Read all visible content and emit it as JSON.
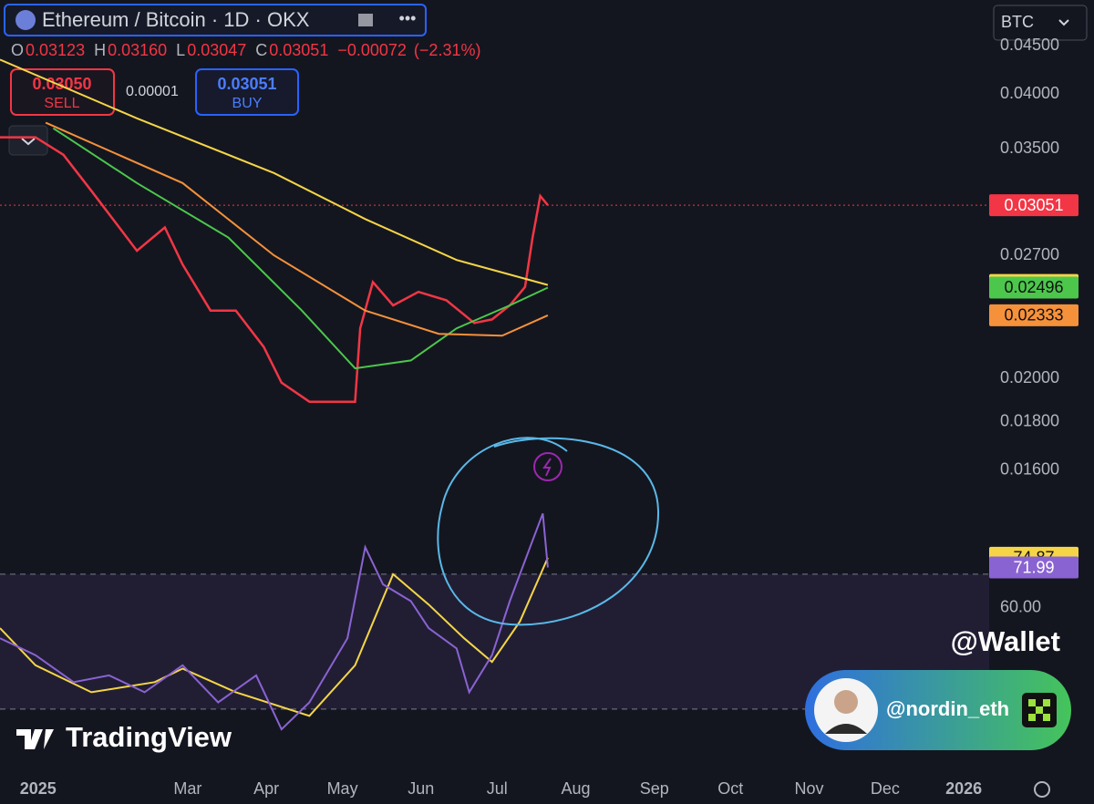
{
  "toolbar": {
    "currency": "BTC",
    "ohlc": [
      {
        "key": "O",
        "value": 0.03123
      },
      {
        "key": "H",
        "value": {
          "value": 0.0316,
          "label": "0.03160"
        }
      },
      {
        "key": "L",
        "value": 0.03047
      },
      {
        "key": "C",
        "value": 0.03051
      }
    ],
    "change": {
      "value": -0.00072,
      "label": "−0.00072"
    },
    "change_pct": {
      "value": -2.31,
      "label": "(−2.31%)"
    },
    "sell": {
      "price": {
        "value": 0.0305,
        "label": "0.03050"
      },
      "label": "SELL"
    },
    "spread": 1e-05,
    "buy": {
      "price": 0.03051,
      "label": "BUY"
    }
  },
  "overlay": {
    "watermark": "TradingView",
    "badge": "@Wallet",
    "handle": "@nordin_eth"
  },
  "chart_data": [
    {
      "type": "line",
      "title": "Ethereum / Bitcoin · 1D · OKX",
      "log_scale": true,
      "xlim": [
        -15,
        375
      ],
      "ylim": [
        0.0155,
        0.0503
      ],
      "yticks": [
        {
          "value": 0.045,
          "label": "0.04500"
        },
        {
          "value": 0.04,
          "label": "0.04000"
        },
        {
          "value": 0.035,
          "label": "0.03500"
        },
        {
          "value": 0.027,
          "label": "0.02700"
        },
        {
          "value": 0.02,
          "label": "0.02000"
        },
        {
          "value": 0.018,
          "label": "0.01800"
        },
        {
          "value": 0.016,
          "label": "0.01600"
        }
      ],
      "series": [
        {
          "color": "#f23645",
          "x": [
            -15,
            -1,
            10,
            21,
            32,
            39,
            50,
            57,
            68,
            78,
            89,
            96,
            107,
            118,
            125,
            127,
            132,
            140,
            150,
            161,
            172,
            179,
            186,
            192,
            195,
            198,
            201
          ],
          "values": [
            0.036,
            0.036,
            0.0345,
            0.0316,
            0.0289,
            0.0273,
            0.0289,
            0.0264,
            0.0236,
            0.0236,
            0.0216,
            0.0198,
            0.0189,
            0.0189,
            0.0189,
            0.0226,
            0.0253,
            0.0239,
            0.0247,
            0.0242,
            0.0229,
            0.0231,
            0.0239,
            0.025,
            0.0282,
            0.0312,
            0.03051
          ]
        },
        {
          "color": "#f5d547",
          "x": [
            -15,
            39,
            93,
            129,
            165,
            201
          ],
          "values": [
            0.0435,
            0.0377,
            0.033,
            0.0295,
            0.0267,
            0.02512
          ]
        },
        {
          "color": "#4cc74c",
          "x": [
            6,
            39,
            75,
            104,
            125,
            147,
            165,
            186,
            201
          ],
          "values": [
            0.0368,
            0.0322,
            0.0282,
            0.0236,
            0.0205,
            0.0209,
            0.0226,
            0.0239,
            0.02496
          ]
        },
        {
          "color": "#f5913b",
          "x": [
            3,
            57,
            93,
            129,
            158,
            183,
            201
          ],
          "values": [
            0.0373,
            0.0322,
            0.027,
            0.0236,
            0.0223,
            0.0222,
            0.02333
          ]
        }
      ]
    },
    {
      "type": "line",
      "xlim": [
        -15,
        375
      ],
      "ylim": [
        10.5,
        94.3
      ],
      "levels": [
        70,
        30
      ],
      "yticks": [
        {
          "value": 60,
          "label": "60.00"
        }
      ],
      "xticks": [
        {
          "value": 0,
          "label": "2025"
        },
        {
          "value": 59,
          "label": "Mar"
        },
        {
          "value": 90,
          "label": "Apr"
        },
        {
          "value": 120,
          "label": "May"
        },
        {
          "value": 151,
          "label": "Jun"
        },
        {
          "value": 181,
          "label": "Jul"
        },
        {
          "value": 212,
          "label": "Aug"
        },
        {
          "value": 243,
          "label": "Sep"
        },
        {
          "value": 273,
          "label": "Oct"
        },
        {
          "value": 304,
          "label": "Nov"
        },
        {
          "value": 334,
          "label": "Dec"
        },
        {
          "value": 365,
          "label": "2026"
        }
      ],
      "series": [
        {
          "color": "#f5d547",
          "x": [
            -15,
            -1,
            21,
            46,
            57,
            78,
            107,
            125,
            140,
            154,
            168,
            179,
            190,
            201
          ],
          "values": [
            54,
            43,
            35,
            38,
            42,
            35,
            28,
            43,
            70,
            61,
            51,
            44,
            56,
            74.87
          ]
        },
        {
          "color": "#8a63d2",
          "x": [
            -15,
            -1,
            14,
            28,
            42,
            57,
            71,
            86,
            96,
            107,
            122,
            129,
            136,
            147,
            154,
            165,
            170,
            179,
            186,
            194,
            199,
            201
          ],
          "values": [
            51,
            46,
            38,
            40,
            35,
            43,
            32,
            40,
            24,
            32,
            51,
            78,
            67,
            62,
            54,
            48,
            35,
            46,
            62,
            78,
            88,
            71.99
          ]
        }
      ]
    }
  ]
}
